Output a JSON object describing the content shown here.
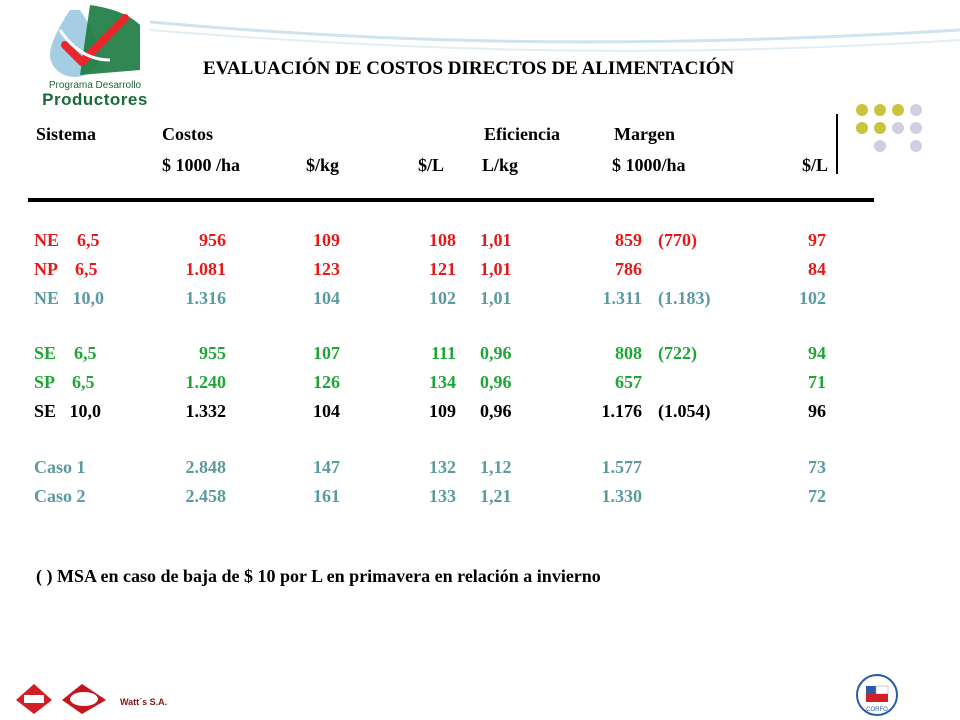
{
  "logo": {
    "line1": "Programa Desarrollo",
    "line2": "Productores",
    "icon": "drop-check-icon"
  },
  "title": "EVALUACIÓN DE COSTOS DIRECTOS DE ALIMENTACIÓN",
  "header1": {
    "sistema": "Sistema",
    "costos": "Costos",
    "eficiencia": "Eficiencia",
    "margen": "Margen"
  },
  "header2": {
    "c1": "$ 1000 /ha",
    "c2": "$/kg",
    "c3": "$/L",
    "c4": "L/kg",
    "c5": "$ 1000/ha",
    "c6": "$/L"
  },
  "rows": [
    {
      "sistema": "NE    6,5",
      "ha": "956",
      "kg": "109",
      "l": "108",
      "lkg": "1,01",
      "margen": "859",
      "paren": "(770)",
      "ml": "97",
      "color": "#e41a1a"
    },
    {
      "sistema": "NP    6,5",
      "ha": "1.081",
      "kg": "123",
      "l": "121",
      "lkg": "1,01",
      "margen": "786",
      "paren": "",
      "ml": "84",
      "color": "#e41a1a"
    },
    {
      "sistema": "NE   10,0",
      "ha": "1.316",
      "kg": "104",
      "l": "102",
      "lkg": "1,01",
      "margen": "1.311",
      "paren": "(1.183)",
      "ml": "102",
      "color": "#5b9aa0"
    },
    {
      "sistema": "SE    6,5",
      "ha": "955",
      "kg": "107",
      "l": "111",
      "lkg": "0,96",
      "margen": "808",
      "paren": "(722)",
      "ml": "94",
      "color": "#1fa636"
    },
    {
      "sistema": "SP    6,5",
      "ha": "1.240",
      "kg": "126",
      "l": "134",
      "lkg": "0,96",
      "margen": "657",
      "paren": "",
      "ml": "71",
      "color": "#1fa636"
    },
    {
      "sistema": "SE   10,0",
      "ha": "1.332",
      "kg": "104",
      "l": "109",
      "lkg": "0,96",
      "margen": "1.176",
      "paren": "(1.054)",
      "ml": "96",
      "color": "#000000"
    },
    {
      "sistema": "Caso 1",
      "ha": "2.848",
      "kg": "147",
      "l": "132",
      "lkg": "1,12",
      "margen": "1.577",
      "paren": "",
      "ml": "73",
      "color": "#5b9aa0"
    },
    {
      "sistema": "Caso 2",
      "ha": "2.458",
      "kg": "161",
      "l": "133",
      "lkg": "1,21",
      "margen": "1.330",
      "paren": "",
      "ml": "72",
      "color": "#5b9aa0"
    }
  ],
  "footnote": "(   )  MSA en caso de baja de $ 10 por L en primavera en relación a invierno",
  "footer": {
    "watts": "Watt´s S.A.",
    "logo1": "unimarc-logo",
    "logo2": "calo-logo",
    "logo3": "corfo-logo"
  }
}
